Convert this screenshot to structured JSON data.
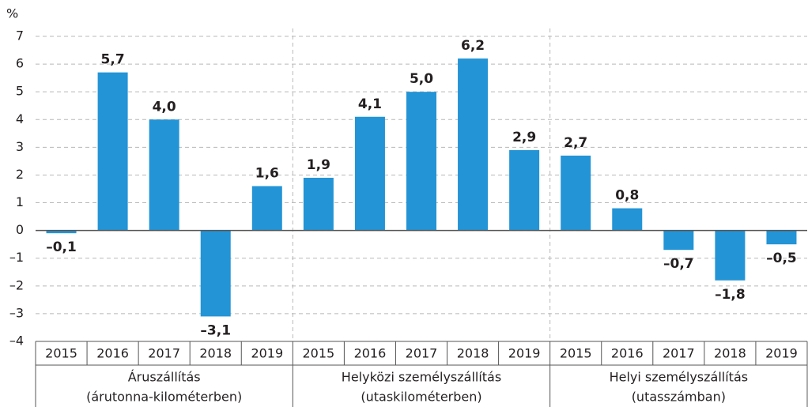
{
  "chart_data": {
    "type": "bar",
    "unit": "%",
    "color": "#2394d6",
    "ylim": [
      -4,
      7
    ],
    "yticks": [
      {
        "value": -4,
        "label": "–4"
      },
      {
        "value": -3,
        "label": "–3"
      },
      {
        "value": -2,
        "label": "–2"
      },
      {
        "value": -1,
        "label": "–1"
      },
      0,
      1,
      2,
      3,
      4,
      5,
      6,
      7
    ],
    "grid": true,
    "groups": [
      {
        "name_lines": [
          "Áruszállítás",
          "(árutonna-kilométerben)"
        ],
        "categories": [
          "2015",
          "2016",
          "2017",
          "2018",
          "2019"
        ],
        "values": [
          -0.1,
          5.7,
          4.0,
          -3.1,
          1.6
        ],
        "value_labels": [
          "–0,1",
          "5,7",
          "4,0",
          "–3,1",
          "1,6"
        ]
      },
      {
        "name_lines": [
          "Helyközi személyszállítás",
          "(utaskilométerben)"
        ],
        "categories": [
          "2015",
          "2016",
          "2017",
          "2018",
          "2019"
        ],
        "values": [
          1.9,
          4.1,
          5.0,
          6.2,
          2.9
        ],
        "value_labels": [
          "1,9",
          "4,1",
          "5,0",
          "6,2",
          "2,9"
        ]
      },
      {
        "name_lines": [
          "Helyi személyszállítás",
          "(utasszámban)"
        ],
        "categories": [
          "2015",
          "2016",
          "2017",
          "2018",
          "2019"
        ],
        "values": [
          2.7,
          0.8,
          -0.7,
          -1.8,
          -0.5
        ],
        "value_labels": [
          "2,7",
          "0,8",
          "–0,7",
          "–1,8",
          "–0,5"
        ]
      }
    ]
  }
}
